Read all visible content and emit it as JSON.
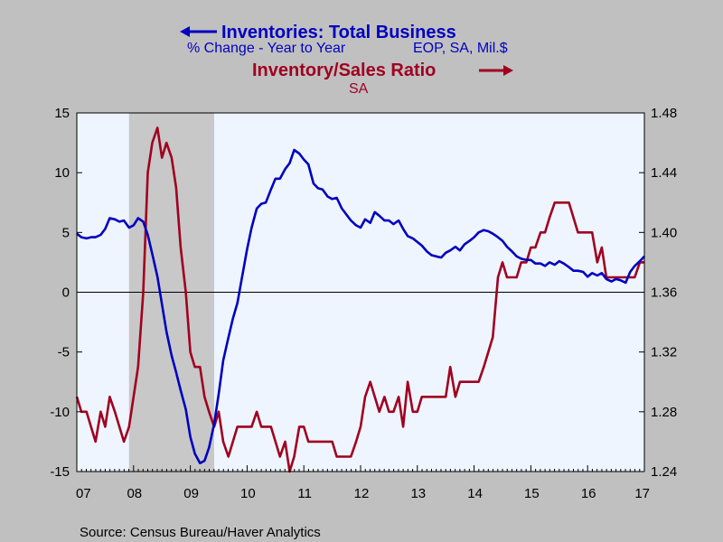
{
  "colors": {
    "background": "#c0c0c0",
    "plot_background": "#eef5ff",
    "recession": "#c8c8c8",
    "series_blue": "#0000c0",
    "series_red": "#a00020"
  },
  "legend": {
    "series1_title": "Inventories: Total Business",
    "series1_subtitle_left": "% Change - Year to Year",
    "series1_subtitle_right": "EOP, SA, Mil.$",
    "series2_title": "Inventory/Sales Ratio",
    "series2_subtitle": "SA"
  },
  "source": "Source:  Census Bureau/Haver Analytics",
  "chart_data": {
    "type": "line",
    "x_tick_labels": [
      "07",
      "08",
      "09",
      "10",
      "11",
      "12",
      "13",
      "14",
      "15",
      "16",
      "17"
    ],
    "xlim": [
      2007.0,
      2017.0
    ],
    "y_left": {
      "ylim": [
        -15,
        15
      ],
      "ticks": [
        15,
        10,
        5,
        0,
        -5,
        -10,
        -15
      ],
      "tick_labels": [
        "15",
        "10",
        "5",
        "0",
        "-5",
        "-10",
        "-15"
      ]
    },
    "y_right": {
      "ylim": [
        1.24,
        1.48
      ],
      "ticks": [
        1.48,
        1.44,
        1.4,
        1.36,
        1.32,
        1.28,
        1.24
      ],
      "tick_labels": [
        "1.48",
        "1.44",
        "1.40",
        "1.36",
        "1.32",
        "1.28",
        "1.24"
      ]
    },
    "recession_band": [
      2007.92,
      2009.42
    ],
    "zero_line": 0,
    "grid": false,
    "series": [
      {
        "name": "Inventories: Total Business",
        "axis": "left",
        "color": "#0000c0",
        "x": [
          2007.0,
          2007.08,
          2007.17,
          2007.25,
          2007.33,
          2007.42,
          2007.5,
          2007.58,
          2007.67,
          2007.75,
          2007.83,
          2007.92,
          2008.0,
          2008.08,
          2008.17,
          2008.25,
          2008.33,
          2008.42,
          2008.5,
          2008.58,
          2008.67,
          2008.75,
          2008.83,
          2008.92,
          2009.0,
          2009.08,
          2009.17,
          2009.25,
          2009.33,
          2009.42,
          2009.5,
          2009.58,
          2009.67,
          2009.75,
          2009.83,
          2009.92,
          2010.0,
          2010.08,
          2010.17,
          2010.25,
          2010.33,
          2010.42,
          2010.5,
          2010.58,
          2010.67,
          2010.75,
          2010.83,
          2010.92,
          2011.0,
          2011.08,
          2011.17,
          2011.25,
          2011.33,
          2011.42,
          2011.5,
          2011.58,
          2011.67,
          2011.75,
          2011.83,
          2011.92,
          2012.0,
          2012.08,
          2012.17,
          2012.25,
          2012.33,
          2012.42,
          2012.5,
          2012.58,
          2012.67,
          2012.75,
          2012.83,
          2012.92,
          2013.0,
          2013.08,
          2013.17,
          2013.25,
          2013.33,
          2013.42,
          2013.5,
          2013.58,
          2013.67,
          2013.75,
          2013.83,
          2013.92,
          2014.0,
          2014.08,
          2014.17,
          2014.25,
          2014.33,
          2014.42,
          2014.5,
          2014.58,
          2014.67,
          2014.75,
          2014.83,
          2014.92,
          2015.0,
          2015.08,
          2015.17,
          2015.25,
          2015.33,
          2015.42,
          2015.5,
          2015.58,
          2015.67,
          2015.75,
          2015.83,
          2015.92,
          2016.0,
          2016.08,
          2016.17,
          2016.25,
          2016.33,
          2016.42,
          2016.5,
          2016.58,
          2016.67,
          2016.75,
          2016.83,
          2016.92,
          2017.0
        ],
        "values": [
          4.9,
          4.6,
          4.5,
          4.6,
          4.6,
          4.8,
          5.3,
          6.2,
          6.1,
          5.9,
          6.0,
          5.4,
          5.6,
          6.2,
          5.9,
          4.8,
          3.2,
          1.3,
          -1.0,
          -3.3,
          -5.3,
          -6.7,
          -8.2,
          -9.8,
          -12.1,
          -13.5,
          -14.3,
          -14.1,
          -13.0,
          -11.0,
          -8.5,
          -5.7,
          -3.8,
          -2.2,
          -0.9,
          1.5,
          3.6,
          5.4,
          7.0,
          7.4,
          7.5,
          8.6,
          9.5,
          9.5,
          10.3,
          10.8,
          11.9,
          11.6,
          11.1,
          10.7,
          9.1,
          8.7,
          8.6,
          8.0,
          7.8,
          7.9,
          7.0,
          6.5,
          6.0,
          5.6,
          5.4,
          6.1,
          5.8,
          6.7,
          6.4,
          6.0,
          6.0,
          5.7,
          6.0,
          5.3,
          4.7,
          4.5,
          4.2,
          3.9,
          3.4,
          3.1,
          3.0,
          2.9,
          3.3,
          3.5,
          3.8,
          3.5,
          4.0,
          4.3,
          4.6,
          5.0,
          5.2,
          5.1,
          4.9,
          4.6,
          4.3,
          3.8,
          3.4,
          3.0,
          2.8,
          2.7,
          2.7,
          2.4,
          2.4,
          2.2,
          2.5,
          2.3,
          2.6,
          2.4,
          2.1,
          1.8,
          1.8,
          1.7,
          1.3,
          1.6,
          1.4,
          1.6,
          1.1,
          0.9,
          1.1,
          1.0,
          0.8,
          1.7,
          2.2,
          2.6,
          3.0
        ]
      },
      {
        "name": "Inventory/Sales Ratio",
        "axis": "right",
        "color": "#a00020",
        "x": [
          2007.0,
          2007.08,
          2007.17,
          2007.25,
          2007.33,
          2007.42,
          2007.5,
          2007.58,
          2007.67,
          2007.75,
          2007.83,
          2007.92,
          2008.0,
          2008.08,
          2008.17,
          2008.25,
          2008.33,
          2008.42,
          2008.5,
          2008.58,
          2008.67,
          2008.75,
          2008.83,
          2008.92,
          2009.0,
          2009.08,
          2009.17,
          2009.25,
          2009.33,
          2009.42,
          2009.5,
          2009.58,
          2009.67,
          2009.75,
          2009.83,
          2009.92,
          2010.0,
          2010.08,
          2010.17,
          2010.25,
          2010.33,
          2010.42,
          2010.5,
          2010.58,
          2010.67,
          2010.75,
          2010.83,
          2010.92,
          2011.0,
          2011.08,
          2011.17,
          2011.25,
          2011.33,
          2011.42,
          2011.5,
          2011.58,
          2011.67,
          2011.75,
          2011.83,
          2011.92,
          2012.0,
          2012.08,
          2012.17,
          2012.25,
          2012.33,
          2012.42,
          2012.5,
          2012.58,
          2012.67,
          2012.75,
          2012.83,
          2012.92,
          2013.0,
          2013.08,
          2013.17,
          2013.25,
          2013.33,
          2013.42,
          2013.5,
          2013.58,
          2013.67,
          2013.75,
          2013.83,
          2013.92,
          2014.0,
          2014.08,
          2014.17,
          2014.25,
          2014.33,
          2014.42,
          2014.5,
          2014.58,
          2014.67,
          2014.75,
          2014.83,
          2014.92,
          2015.0,
          2015.08,
          2015.17,
          2015.25,
          2015.33,
          2015.42,
          2015.5,
          2015.58,
          2015.67,
          2015.75,
          2015.83,
          2015.92,
          2016.0,
          2016.08,
          2016.17,
          2016.25,
          2016.33,
          2016.42,
          2016.5,
          2016.58,
          2016.67,
          2016.75,
          2016.83,
          2016.92,
          2017.0
        ],
        "values": [
          1.29,
          1.28,
          1.28,
          1.27,
          1.26,
          1.28,
          1.27,
          1.29,
          1.28,
          1.27,
          1.26,
          1.27,
          1.29,
          1.31,
          1.36,
          1.44,
          1.46,
          1.47,
          1.45,
          1.46,
          1.45,
          1.43,
          1.39,
          1.36,
          1.32,
          1.31,
          1.31,
          1.29,
          1.28,
          1.27,
          1.28,
          1.26,
          1.25,
          1.26,
          1.27,
          1.27,
          1.27,
          1.27,
          1.28,
          1.27,
          1.27,
          1.27,
          1.26,
          1.25,
          1.26,
          1.24,
          1.25,
          1.27,
          1.27,
          1.26,
          1.26,
          1.26,
          1.26,
          1.26,
          1.26,
          1.25,
          1.25,
          1.25,
          1.25,
          1.26,
          1.27,
          1.29,
          1.3,
          1.29,
          1.28,
          1.29,
          1.28,
          1.28,
          1.29,
          1.27,
          1.3,
          1.28,
          1.28,
          1.29,
          1.29,
          1.29,
          1.29,
          1.29,
          1.29,
          1.31,
          1.29,
          1.3,
          1.3,
          1.3,
          1.3,
          1.3,
          1.31,
          1.32,
          1.33,
          1.37,
          1.38,
          1.37,
          1.37,
          1.37,
          1.38,
          1.38,
          1.39,
          1.39,
          1.4,
          1.4,
          1.41,
          1.42,
          1.42,
          1.42,
          1.42,
          1.41,
          1.4,
          1.4,
          1.4,
          1.4,
          1.38,
          1.39,
          1.37,
          1.37,
          1.37,
          1.37,
          1.37,
          1.37,
          1.37,
          1.38,
          1.38
        ]
      }
    ]
  }
}
